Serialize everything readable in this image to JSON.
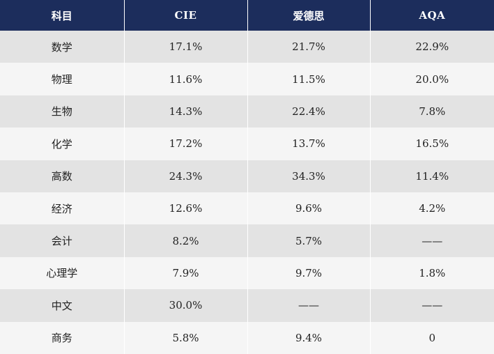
{
  "table": {
    "headers": [
      "科目",
      "CIE",
      "爱德思",
      "AQA"
    ],
    "rows": [
      [
        "数学",
        "17.1%",
        "21.7%",
        "22.9%"
      ],
      [
        "物理",
        "11.6%",
        "11.5%",
        "20.0%"
      ],
      [
        "生物",
        "14.3%",
        "22.4%",
        "7.8%"
      ],
      [
        "化学",
        "17.2%",
        "13.7%",
        "16.5%"
      ],
      [
        "高数",
        "24.3%",
        "34.3%",
        "11.4%"
      ],
      [
        "经济",
        "12.6%",
        "9.6%",
        "4.2%"
      ],
      [
        "会计",
        "8.2%",
        "5.7%",
        "——"
      ],
      [
        "心理学",
        "7.9%",
        "9.7%",
        "1.8%"
      ],
      [
        "中文",
        "30.0%",
        "——",
        "——"
      ],
      [
        "商务",
        "5.8%",
        "9.4%",
        "0"
      ]
    ]
  }
}
